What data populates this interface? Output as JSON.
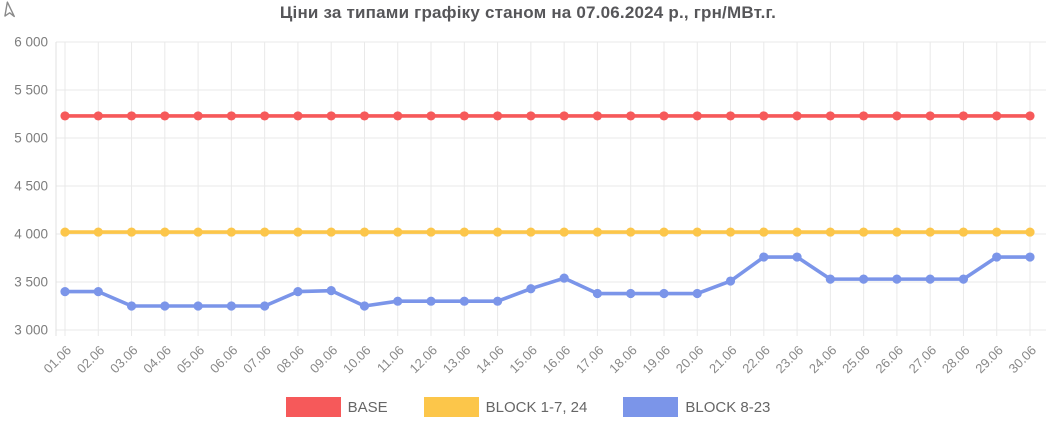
{
  "chart_data": {
    "type": "line",
    "title": "Ціни за типами графіку станом на 07.06.2024 р., грн/МВт.г.",
    "xlabel": "",
    "ylabel": "",
    "ylim": [
      3000,
      6000
    ],
    "ytick_step": 500,
    "ytick_labels": [
      "6 000",
      "5 500",
      "5 000",
      "4 500",
      "4 000",
      "3 500",
      "3 000"
    ],
    "grid": true,
    "legend_position": "bottom",
    "categories": [
      "01.06",
      "02.06",
      "03.06",
      "04.06",
      "05.06",
      "06.06",
      "07.06",
      "08.06",
      "09.06",
      "10.06",
      "11.06",
      "12.06",
      "13.06",
      "14.06",
      "15.06",
      "16.06",
      "17.06",
      "18.06",
      "19.06",
      "20.06",
      "21.06",
      "22.06",
      "23.06",
      "24.06",
      "25.06",
      "26.06",
      "27.06",
      "28.06",
      "29.06",
      "30.06"
    ],
    "series": [
      {
        "name": "BASE",
        "color": "#f6595a",
        "values": [
          5230,
          5230,
          5230,
          5230,
          5230,
          5230,
          5230,
          5230,
          5230,
          5230,
          5230,
          5230,
          5230,
          5230,
          5230,
          5230,
          5230,
          5230,
          5230,
          5230,
          5230,
          5230,
          5230,
          5230,
          5230,
          5230,
          5230,
          5230,
          5230,
          5230
        ]
      },
      {
        "name": "BLOCK 1-7, 24",
        "color": "#fcc64a",
        "values": [
          4020,
          4020,
          4020,
          4020,
          4020,
          4020,
          4020,
          4020,
          4020,
          4020,
          4020,
          4020,
          4020,
          4020,
          4020,
          4020,
          4020,
          4020,
          4020,
          4020,
          4020,
          4020,
          4020,
          4020,
          4020,
          4020,
          4020,
          4020,
          4020,
          4020
        ]
      },
      {
        "name": "BLOCK 8-23",
        "color": "#7b95e9",
        "values": [
          3400,
          3400,
          3250,
          3250,
          3250,
          3250,
          3250,
          3400,
          3410,
          3250,
          3300,
          3300,
          3300,
          3300,
          3430,
          3540,
          3380,
          3380,
          3380,
          3380,
          3510,
          3760,
          3760,
          3530,
          3530,
          3530,
          3530,
          3530,
          3760,
          3760
        ]
      }
    ],
    "colors": {
      "grid": "#e9e9e9",
      "axis_line": "#e0e0e0",
      "tick_text": "#7d7d7d",
      "title_text": "#565659",
      "legend_text": "#666666"
    }
  }
}
